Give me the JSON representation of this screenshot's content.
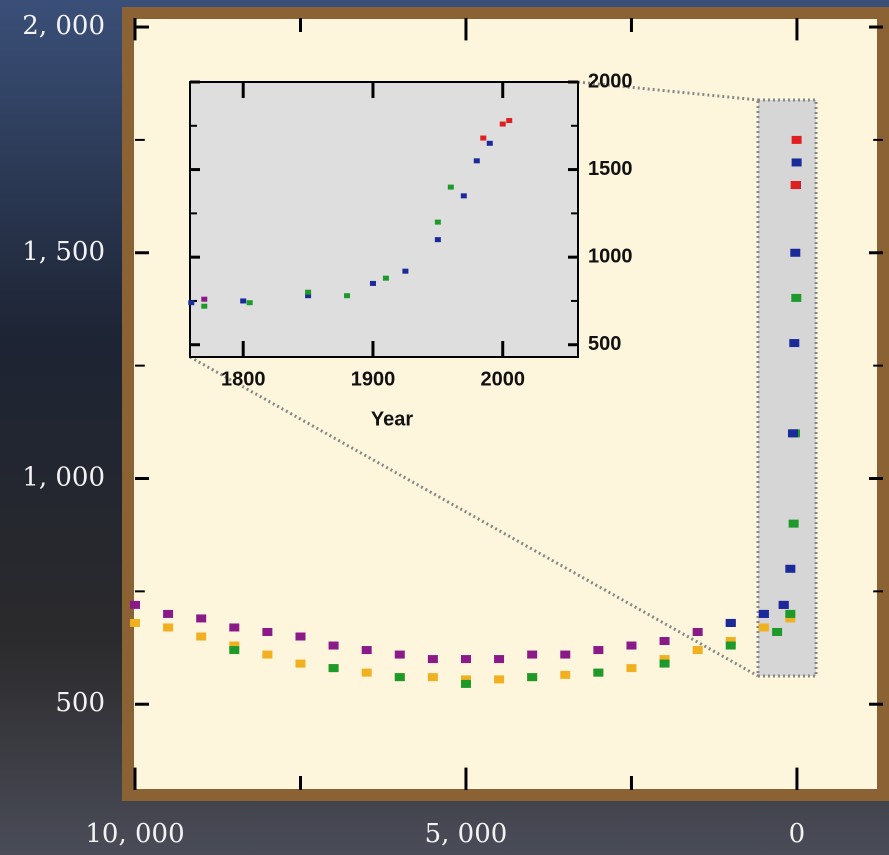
{
  "chart_data": [
    {
      "type": "scatter",
      "xlim": [
        10000,
        -1300
      ],
      "xticks": [
        {
          "value": 10000,
          "label": "10, 000"
        },
        {
          "value": 5000,
          "label": "5, 000"
        },
        0
      ],
      "minor_xticks": [
        7500,
        2500
      ],
      "ylim": [
        310,
        2020
      ],
      "yticks": [
        500,
        {
          "value": 1000,
          "label": "1, 000"
        },
        {
          "value": 1500,
          "label": "1, 500"
        },
        {
          "value": 2000,
          "label": "2, 000"
        }
      ],
      "minor_yticks": [
        750,
        1250,
        1750
      ],
      "series": [
        {
          "color": "#8b1a89",
          "x": [
            10000,
            9500,
            9000,
            8500,
            8000,
            7500,
            7000,
            6500,
            6000,
            5500,
            5000,
            4500,
            4000,
            3500,
            3000,
            2500,
            2000,
            1500,
            1000,
            500,
            200
          ],
          "values": [
            720,
            700,
            690,
            670,
            660,
            650,
            630,
            620,
            610,
            600,
            600,
            600,
            610,
            610,
            620,
            630,
            640,
            660,
            680,
            700,
            720
          ]
        },
        {
          "color": "#f0b020",
          "x": [
            10000,
            9500,
            9000,
            8500,
            8000,
            7500,
            7000,
            6500,
            6000,
            5500,
            5000,
            4500,
            4000,
            3500,
            3000,
            2500,
            2000,
            1500,
            1000,
            500,
            100
          ],
          "values": [
            680,
            670,
            650,
            630,
            610,
            590,
            580,
            570,
            560,
            560,
            555,
            555,
            560,
            565,
            570,
            580,
            600,
            620,
            640,
            670,
            690
          ]
        },
        {
          "color": "#1e9a2a",
          "x": [
            8500,
            7000,
            6000,
            5000,
            4000,
            3000,
            2000,
            1000,
            300,
            100,
            50,
            30,
            10
          ],
          "values": [
            620,
            580,
            560,
            545,
            560,
            570,
            590,
            630,
            660,
            700,
            900,
            1100,
            1400
          ]
        },
        {
          "color": "#1a2a9a",
          "x": [
            1000,
            500,
            200,
            100,
            60,
            40,
            25,
            15,
            5
          ],
          "values": [
            680,
            700,
            720,
            800,
            1100,
            1300,
            1500,
            1650,
            1700
          ]
        },
        {
          "color": "#e02020",
          "x": [
            20,
            5
          ],
          "values": [
            1650,
            1750
          ]
        }
      ]
    },
    {
      "type": "scatter",
      "xlabel": "Year",
      "xlim": [
        1759,
        2058
      ],
      "xticks": [
        1800,
        1900,
        2000
      ],
      "ylim": [
        430,
        2000
      ],
      "yticks": [
        500,
        1000,
        1500,
        2000
      ],
      "minor_yticks": [
        750,
        1250,
        1750
      ],
      "series": [
        {
          "color": "#8b1a89",
          "x": [
            1770
          ],
          "values": [
            760
          ]
        },
        {
          "color": "#1a2a9a",
          "x": [
            1760,
            1800,
            1850,
            1900,
            1925,
            1950,
            1970,
            1980,
            1990
          ],
          "values": [
            740,
            750,
            780,
            850,
            920,
            1100,
            1350,
            1550,
            1650
          ]
        },
        {
          "color": "#1e9a2a",
          "x": [
            1770,
            1805,
            1850,
            1880,
            1910,
            1950,
            1960
          ],
          "values": [
            720,
            740,
            800,
            780,
            880,
            1200,
            1400
          ]
        },
        {
          "color": "#e02020",
          "x": [
            1985,
            2000,
            2005
          ],
          "values": [
            1680,
            1760,
            1780
          ]
        }
      ]
    }
  ]
}
